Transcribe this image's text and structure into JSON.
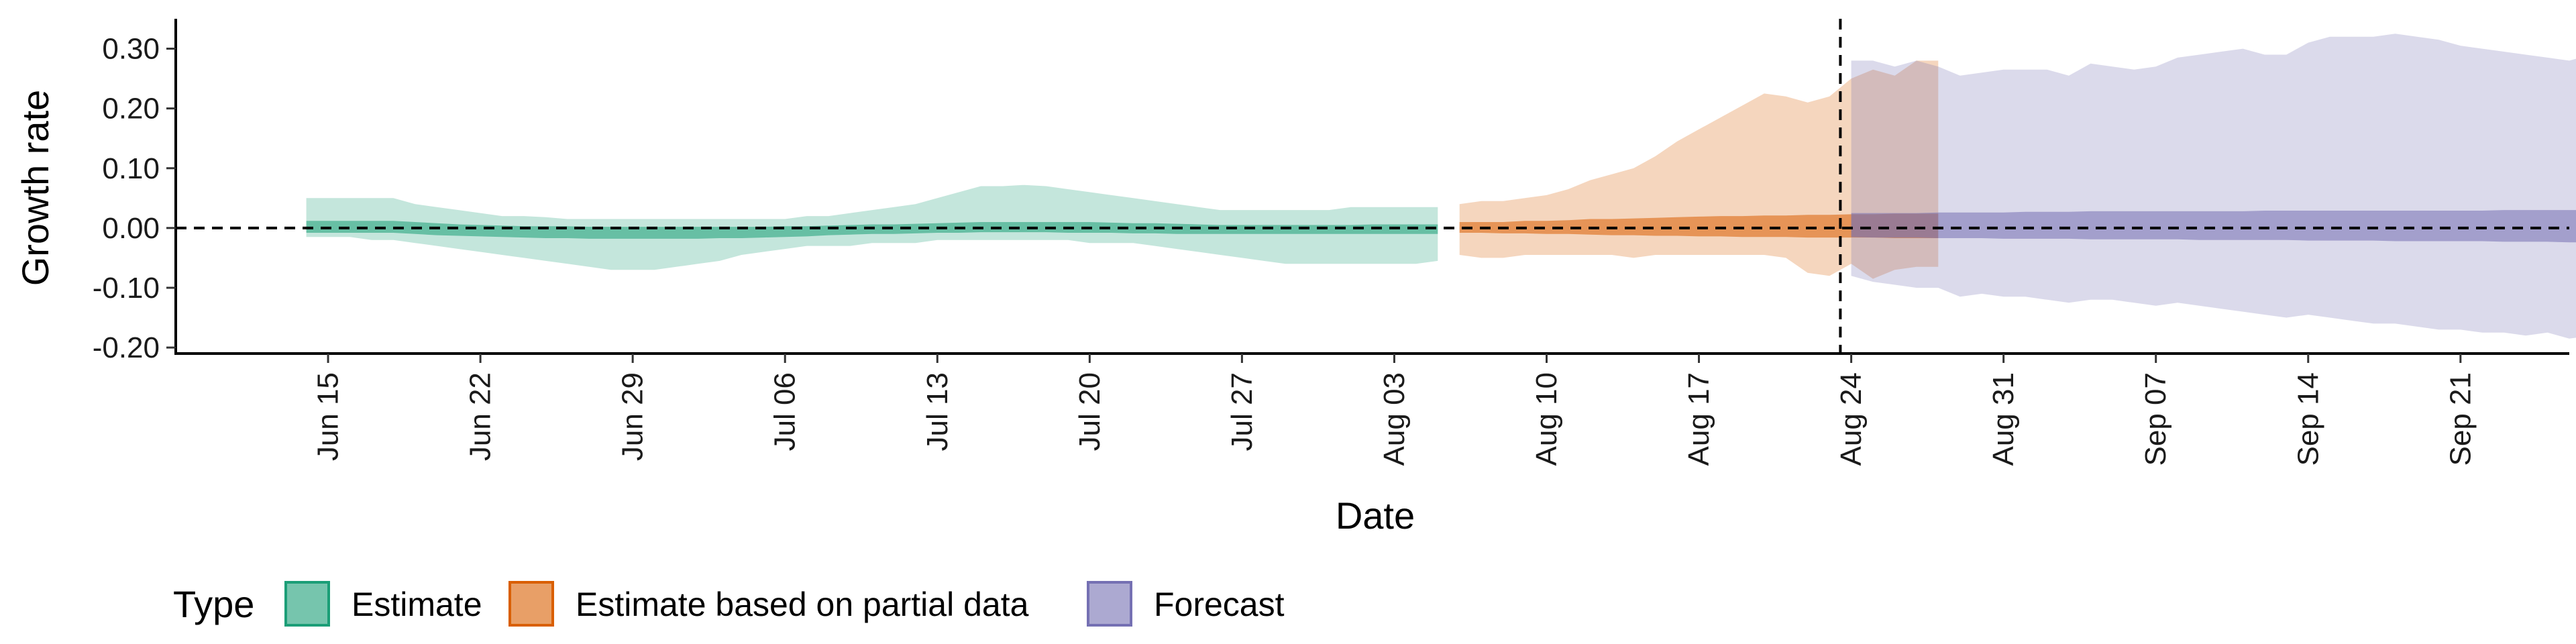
{
  "chart_data": {
    "type": "area",
    "xlabel": "Date",
    "ylabel": "Growth rate",
    "ylim": [
      -0.21,
      0.35
    ],
    "xlim": [
      "2020-06-08",
      "2020-09-26"
    ],
    "y_ticks": [
      {
        "value": 0.3,
        "label": "0.30"
      },
      {
        "value": 0.2,
        "label": "0.20"
      },
      {
        "value": 0.1,
        "label": "0.10"
      },
      {
        "value": 0.0,
        "label": "0.00"
      },
      {
        "value": -0.1,
        "label": "-0.10"
      },
      {
        "value": -0.2,
        "label": "-0.20"
      }
    ],
    "x_ticks": [
      {
        "date": "2020-06-15",
        "label": "Jun 15"
      },
      {
        "date": "2020-06-22",
        "label": "Jun 22"
      },
      {
        "date": "2020-06-29",
        "label": "Jun 29"
      },
      {
        "date": "2020-07-06",
        "label": "Jul 06"
      },
      {
        "date": "2020-07-13",
        "label": "Jul 13"
      },
      {
        "date": "2020-07-20",
        "label": "Jul 20"
      },
      {
        "date": "2020-07-27",
        "label": "Jul 27"
      },
      {
        "date": "2020-08-03",
        "label": "Aug 03"
      },
      {
        "date": "2020-08-10",
        "label": "Aug 10"
      },
      {
        "date": "2020-08-17",
        "label": "Aug 17"
      },
      {
        "date": "2020-08-24",
        "label": "Aug 24"
      },
      {
        "date": "2020-08-31",
        "label": "Aug 31"
      },
      {
        "date": "2020-09-07",
        "label": "Sep 07"
      },
      {
        "date": "2020-09-14",
        "label": "Sep 14"
      },
      {
        "date": "2020-09-21",
        "label": "Sep 21"
      }
    ],
    "reference_lines": {
      "horizontal_y": 0.0,
      "vertical_date": "2020-08-23"
    },
    "legend": {
      "title": "Type",
      "position": "bottom"
    },
    "series": [
      {
        "name": "Estimate",
        "color": "#1b9e77",
        "start_date": "2020-06-14",
        "outer_upper": [
          0.05,
          0.05,
          0.05,
          0.05,
          0.05,
          0.04,
          0.035,
          0.03,
          0.025,
          0.02,
          0.02,
          0.018,
          0.015,
          0.015,
          0.015,
          0.015,
          0.015,
          0.015,
          0.015,
          0.015,
          0.015,
          0.015,
          0.015,
          0.02,
          0.02,
          0.025,
          0.03,
          0.035,
          0.04,
          0.05,
          0.06,
          0.07,
          0.07,
          0.072,
          0.07,
          0.065,
          0.06,
          0.055,
          0.05,
          0.045,
          0.04,
          0.035,
          0.03,
          0.03,
          0.03,
          0.03,
          0.03,
          0.03,
          0.035,
          0.035,
          0.035,
          0.035,
          0.035
        ],
        "inner_upper": [
          0.012,
          0.012,
          0.012,
          0.012,
          0.012,
          0.01,
          0.008,
          0.006,
          0.005,
          0.004,
          0.003,
          0.003,
          0.003,
          0.002,
          0.002,
          0.002,
          0.002,
          0.002,
          0.002,
          0.002,
          0.002,
          0.002,
          0.003,
          0.003,
          0.004,
          0.005,
          0.006,
          0.006,
          0.007,
          0.008,
          0.009,
          0.01,
          0.01,
          0.01,
          0.01,
          0.01,
          0.01,
          0.009,
          0.008,
          0.008,
          0.007,
          0.006,
          0.005,
          0.005,
          0.005,
          0.005,
          0.005,
          0.005,
          0.005,
          0.006,
          0.006,
          0.006,
          0.006
        ],
        "inner_lower": [
          -0.008,
          -0.008,
          -0.008,
          -0.008,
          -0.008,
          -0.01,
          -0.012,
          -0.013,
          -0.014,
          -0.015,
          -0.016,
          -0.017,
          -0.017,
          -0.018,
          -0.018,
          -0.018,
          -0.018,
          -0.018,
          -0.018,
          -0.017,
          -0.017,
          -0.016,
          -0.015,
          -0.014,
          -0.012,
          -0.011,
          -0.01,
          -0.01,
          -0.009,
          -0.008,
          -0.008,
          -0.007,
          -0.007,
          -0.007,
          -0.007,
          -0.008,
          -0.008,
          -0.008,
          -0.009,
          -0.009,
          -0.01,
          -0.01,
          -0.01,
          -0.01,
          -0.01,
          -0.01,
          -0.01,
          -0.01,
          -0.01,
          -0.01,
          -0.01,
          -0.01,
          -0.01
        ],
        "outer_lower": [
          -0.015,
          -0.015,
          -0.015,
          -0.02,
          -0.02,
          -0.025,
          -0.03,
          -0.035,
          -0.04,
          -0.045,
          -0.05,
          -0.055,
          -0.06,
          -0.065,
          -0.07,
          -0.07,
          -0.07,
          -0.065,
          -0.06,
          -0.055,
          -0.045,
          -0.04,
          -0.035,
          -0.03,
          -0.03,
          -0.03,
          -0.025,
          -0.025,
          -0.025,
          -0.02,
          -0.02,
          -0.02,
          -0.02,
          -0.02,
          -0.02,
          -0.02,
          -0.025,
          -0.025,
          -0.025,
          -0.03,
          -0.035,
          -0.04,
          -0.045,
          -0.05,
          -0.055,
          -0.06,
          -0.06,
          -0.06,
          -0.06,
          -0.06,
          -0.06,
          -0.06,
          -0.055
        ]
      },
      {
        "name": "Estimate based on partial data",
        "color": "#d95f02",
        "start_date": "2020-08-06",
        "outer_upper": [
          0.04,
          0.045,
          0.045,
          0.05,
          0.055,
          0.065,
          0.08,
          0.09,
          0.1,
          0.12,
          0.145,
          0.165,
          0.185,
          0.205,
          0.225,
          0.22,
          0.21,
          0.22,
          0.25,
          0.265,
          0.255,
          0.28,
          0.28
        ],
        "inner_upper": [
          0.01,
          0.01,
          0.01,
          0.012,
          0.012,
          0.013,
          0.015,
          0.015,
          0.016,
          0.017,
          0.018,
          0.019,
          0.02,
          0.02,
          0.021,
          0.021,
          0.022,
          0.022,
          0.023,
          0.023,
          0.024,
          0.024,
          0.024
        ],
        "inner_lower": [
          -0.008,
          -0.008,
          -0.009,
          -0.009,
          -0.01,
          -0.01,
          -0.011,
          -0.012,
          -0.012,
          -0.013,
          -0.013,
          -0.014,
          -0.014,
          -0.015,
          -0.015,
          -0.015,
          -0.016,
          -0.016,
          -0.016,
          -0.016,
          -0.017,
          -0.017,
          -0.017
        ],
        "outer_lower": [
          -0.045,
          -0.05,
          -0.05,
          -0.045,
          -0.045,
          -0.045,
          -0.045,
          -0.045,
          -0.05,
          -0.045,
          -0.045,
          -0.045,
          -0.045,
          -0.045,
          -0.045,
          -0.05,
          -0.075,
          -0.08,
          -0.06,
          -0.085,
          -0.07,
          -0.065,
          -0.065
        ]
      },
      {
        "name": "Forecast",
        "color": "#7570b3",
        "start_date": "2020-08-24",
        "outer_upper": [
          0.28,
          0.28,
          0.27,
          0.28,
          0.27,
          0.255,
          0.26,
          0.265,
          0.265,
          0.265,
          0.255,
          0.275,
          0.27,
          0.265,
          0.27,
          0.285,
          0.29,
          0.295,
          0.3,
          0.29,
          0.29,
          0.31,
          0.32,
          0.32,
          0.32,
          0.325,
          0.32,
          0.315,
          0.305,
          0.3,
          0.295,
          0.29,
          0.285,
          0.28,
          0.29,
          0.285,
          0.285,
          0.285,
          0.29,
          0.295
        ],
        "inner_upper": [
          0.025,
          0.025,
          0.025,
          0.025,
          0.026,
          0.026,
          0.026,
          0.026,
          0.027,
          0.027,
          0.027,
          0.028,
          0.028,
          0.028,
          0.028,
          0.028,
          0.028,
          0.028,
          0.028,
          0.029,
          0.029,
          0.029,
          0.029,
          0.029,
          0.029,
          0.029,
          0.029,
          0.029,
          0.029,
          0.029,
          0.03,
          0.03,
          0.03,
          0.03,
          0.03,
          0.03,
          0.03,
          0.03,
          0.03,
          0.03
        ],
        "inner_lower": [
          -0.015,
          -0.016,
          -0.016,
          -0.016,
          -0.017,
          -0.017,
          -0.017,
          -0.018,
          -0.018,
          -0.018,
          -0.018,
          -0.019,
          -0.019,
          -0.019,
          -0.019,
          -0.019,
          -0.02,
          -0.02,
          -0.02,
          -0.02,
          -0.02,
          -0.021,
          -0.021,
          -0.021,
          -0.021,
          -0.022,
          -0.022,
          -0.022,
          -0.022,
          -0.022,
          -0.023,
          -0.023,
          -0.023,
          -0.024,
          -0.024,
          -0.024,
          -0.025,
          -0.025,
          -0.026,
          -0.026
        ],
        "outer_lower": [
          -0.08,
          -0.09,
          -0.095,
          -0.1,
          -0.1,
          -0.115,
          -0.11,
          -0.115,
          -0.115,
          -0.12,
          -0.125,
          -0.12,
          -0.12,
          -0.125,
          -0.13,
          -0.125,
          -0.13,
          -0.135,
          -0.14,
          -0.145,
          -0.15,
          -0.145,
          -0.15,
          -0.155,
          -0.16,
          -0.16,
          -0.165,
          -0.17,
          -0.17,
          -0.175,
          -0.175,
          -0.18,
          -0.175,
          -0.185,
          -0.18,
          -0.18,
          -0.18,
          -0.18,
          -0.18,
          -0.175
        ]
      }
    ]
  }
}
